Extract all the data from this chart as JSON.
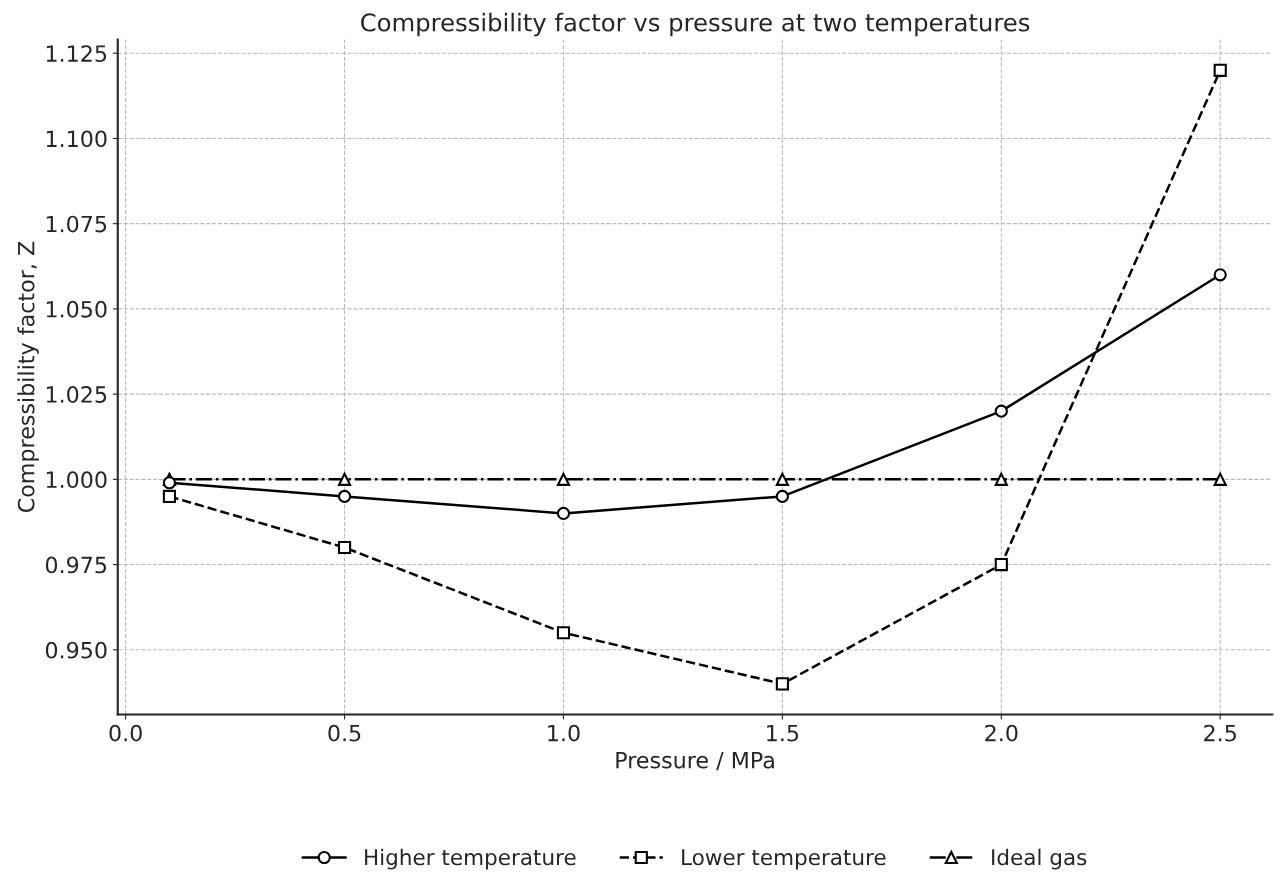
{
  "chart_data": {
    "type": "line",
    "title": "Compressibility factor vs pressure at two temperatures",
    "xlabel": "Pressure / MPa",
    "ylabel": "Compressibility factor, Z",
    "x": [
      0.1,
      0.5,
      1.0,
      1.5,
      2.0,
      2.5
    ],
    "series": [
      {
        "name": "Higher temperature",
        "color": "#000000",
        "marker": "circle",
        "line_style": "solid",
        "values": [
          0.999,
          0.995,
          0.99,
          0.995,
          1.02,
          1.06
        ]
      },
      {
        "name": "Lower temperature",
        "color": "#000000",
        "marker": "square",
        "line_style": "dashed",
        "values": [
          0.995,
          0.98,
          0.955,
          0.94,
          0.975,
          1.12
        ]
      },
      {
        "name": "Ideal gas",
        "color": "#000000",
        "marker": "triangle",
        "line_style": "dashdot",
        "values": [
          1.0,
          1.0,
          1.0,
          1.0,
          1.0,
          1.0
        ]
      }
    ],
    "xlim": [
      -0.018,
      2.619
    ],
    "ylim": [
      0.931,
      1.129
    ],
    "xticks": [
      {
        "value": 0.0,
        "label": "0.0"
      },
      {
        "value": 0.5,
        "label": "0.5"
      },
      {
        "value": 1.0,
        "label": "1.0"
      },
      {
        "value": 1.5,
        "label": "1.5"
      },
      {
        "value": 2.0,
        "label": "2.0"
      },
      {
        "value": 2.5,
        "label": "2.5"
      }
    ],
    "yticks": [
      {
        "value": 0.95,
        "label": "0.950"
      },
      {
        "value": 0.975,
        "label": "0.975"
      },
      {
        "value": 1.0,
        "label": "1.000"
      },
      {
        "value": 1.025,
        "label": "1.025"
      },
      {
        "value": 1.05,
        "label": "1.050"
      },
      {
        "value": 1.075,
        "label": "1.075"
      },
      {
        "value": 1.1,
        "label": "1.100"
      },
      {
        "value": 1.125,
        "label": "1.125"
      }
    ],
    "grid": true,
    "legend": "bottom"
  }
}
